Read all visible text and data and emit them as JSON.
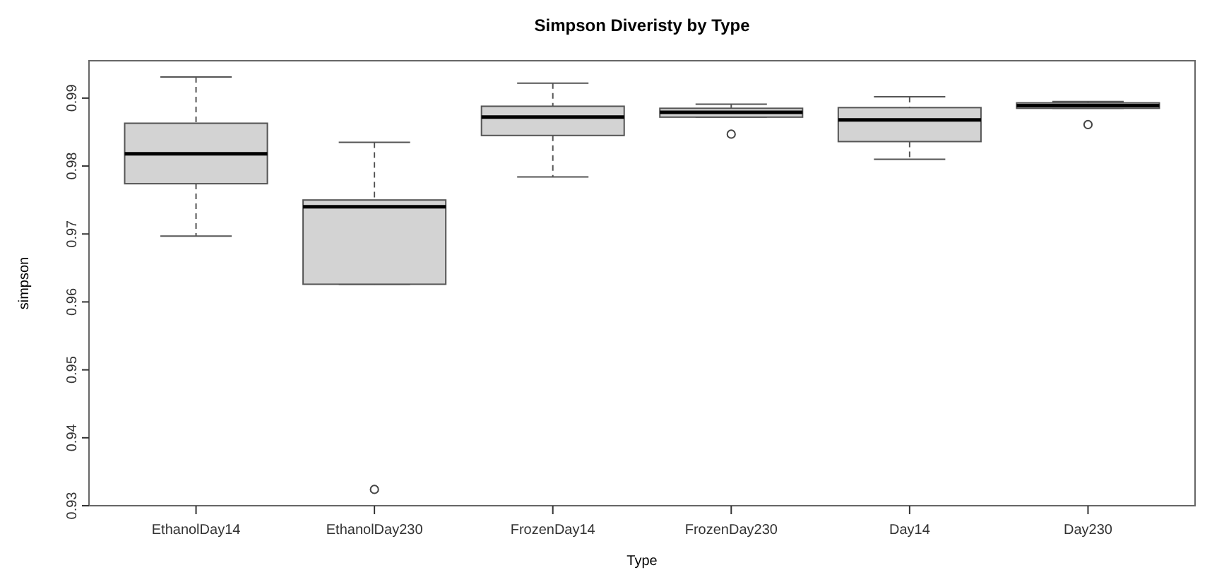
{
  "chart_data": {
    "type": "box",
    "title": "Simpson Diveristy by Type",
    "xlabel": "Type",
    "ylabel": "simpson",
    "categories": [
      "EthanolDay14",
      "EthanolDay230",
      "FrozenDay14",
      "FrozenDay230",
      "Day14",
      "Day230"
    ],
    "color": "#d3d3d3",
    "ylim": [
      0.93,
      0.9955
    ],
    "yticks": [
      0.93,
      0.94,
      0.95,
      0.96,
      0.97,
      0.98,
      0.99
    ],
    "boxes": [
      {
        "low": 0.9697,
        "q1": 0.9774,
        "median": 0.9818,
        "q3": 0.9863,
        "high": 0.9931
      },
      {
        "low": 0.9626,
        "q1": 0.9626,
        "median": 0.974,
        "q3": 0.975,
        "high": 0.9835,
        "outliers": [
          0.9324
        ]
      },
      {
        "low": 0.9784,
        "q1": 0.9845,
        "median": 0.9872,
        "q3": 0.9888,
        "high": 0.9922
      },
      {
        "low": 0.9872,
        "q1": 0.9872,
        "median": 0.9879,
        "q3": 0.9885,
        "high": 0.9891,
        "outliers": [
          0.9847
        ]
      },
      {
        "low": 0.981,
        "q1": 0.9836,
        "median": 0.9868,
        "q3": 0.9886,
        "high": 0.9902
      },
      {
        "low": 0.9885,
        "q1": 0.9885,
        "median": 0.9889,
        "q3": 0.9893,
        "high": 0.9895,
        "outliers": [
          0.9861
        ]
      }
    ]
  }
}
